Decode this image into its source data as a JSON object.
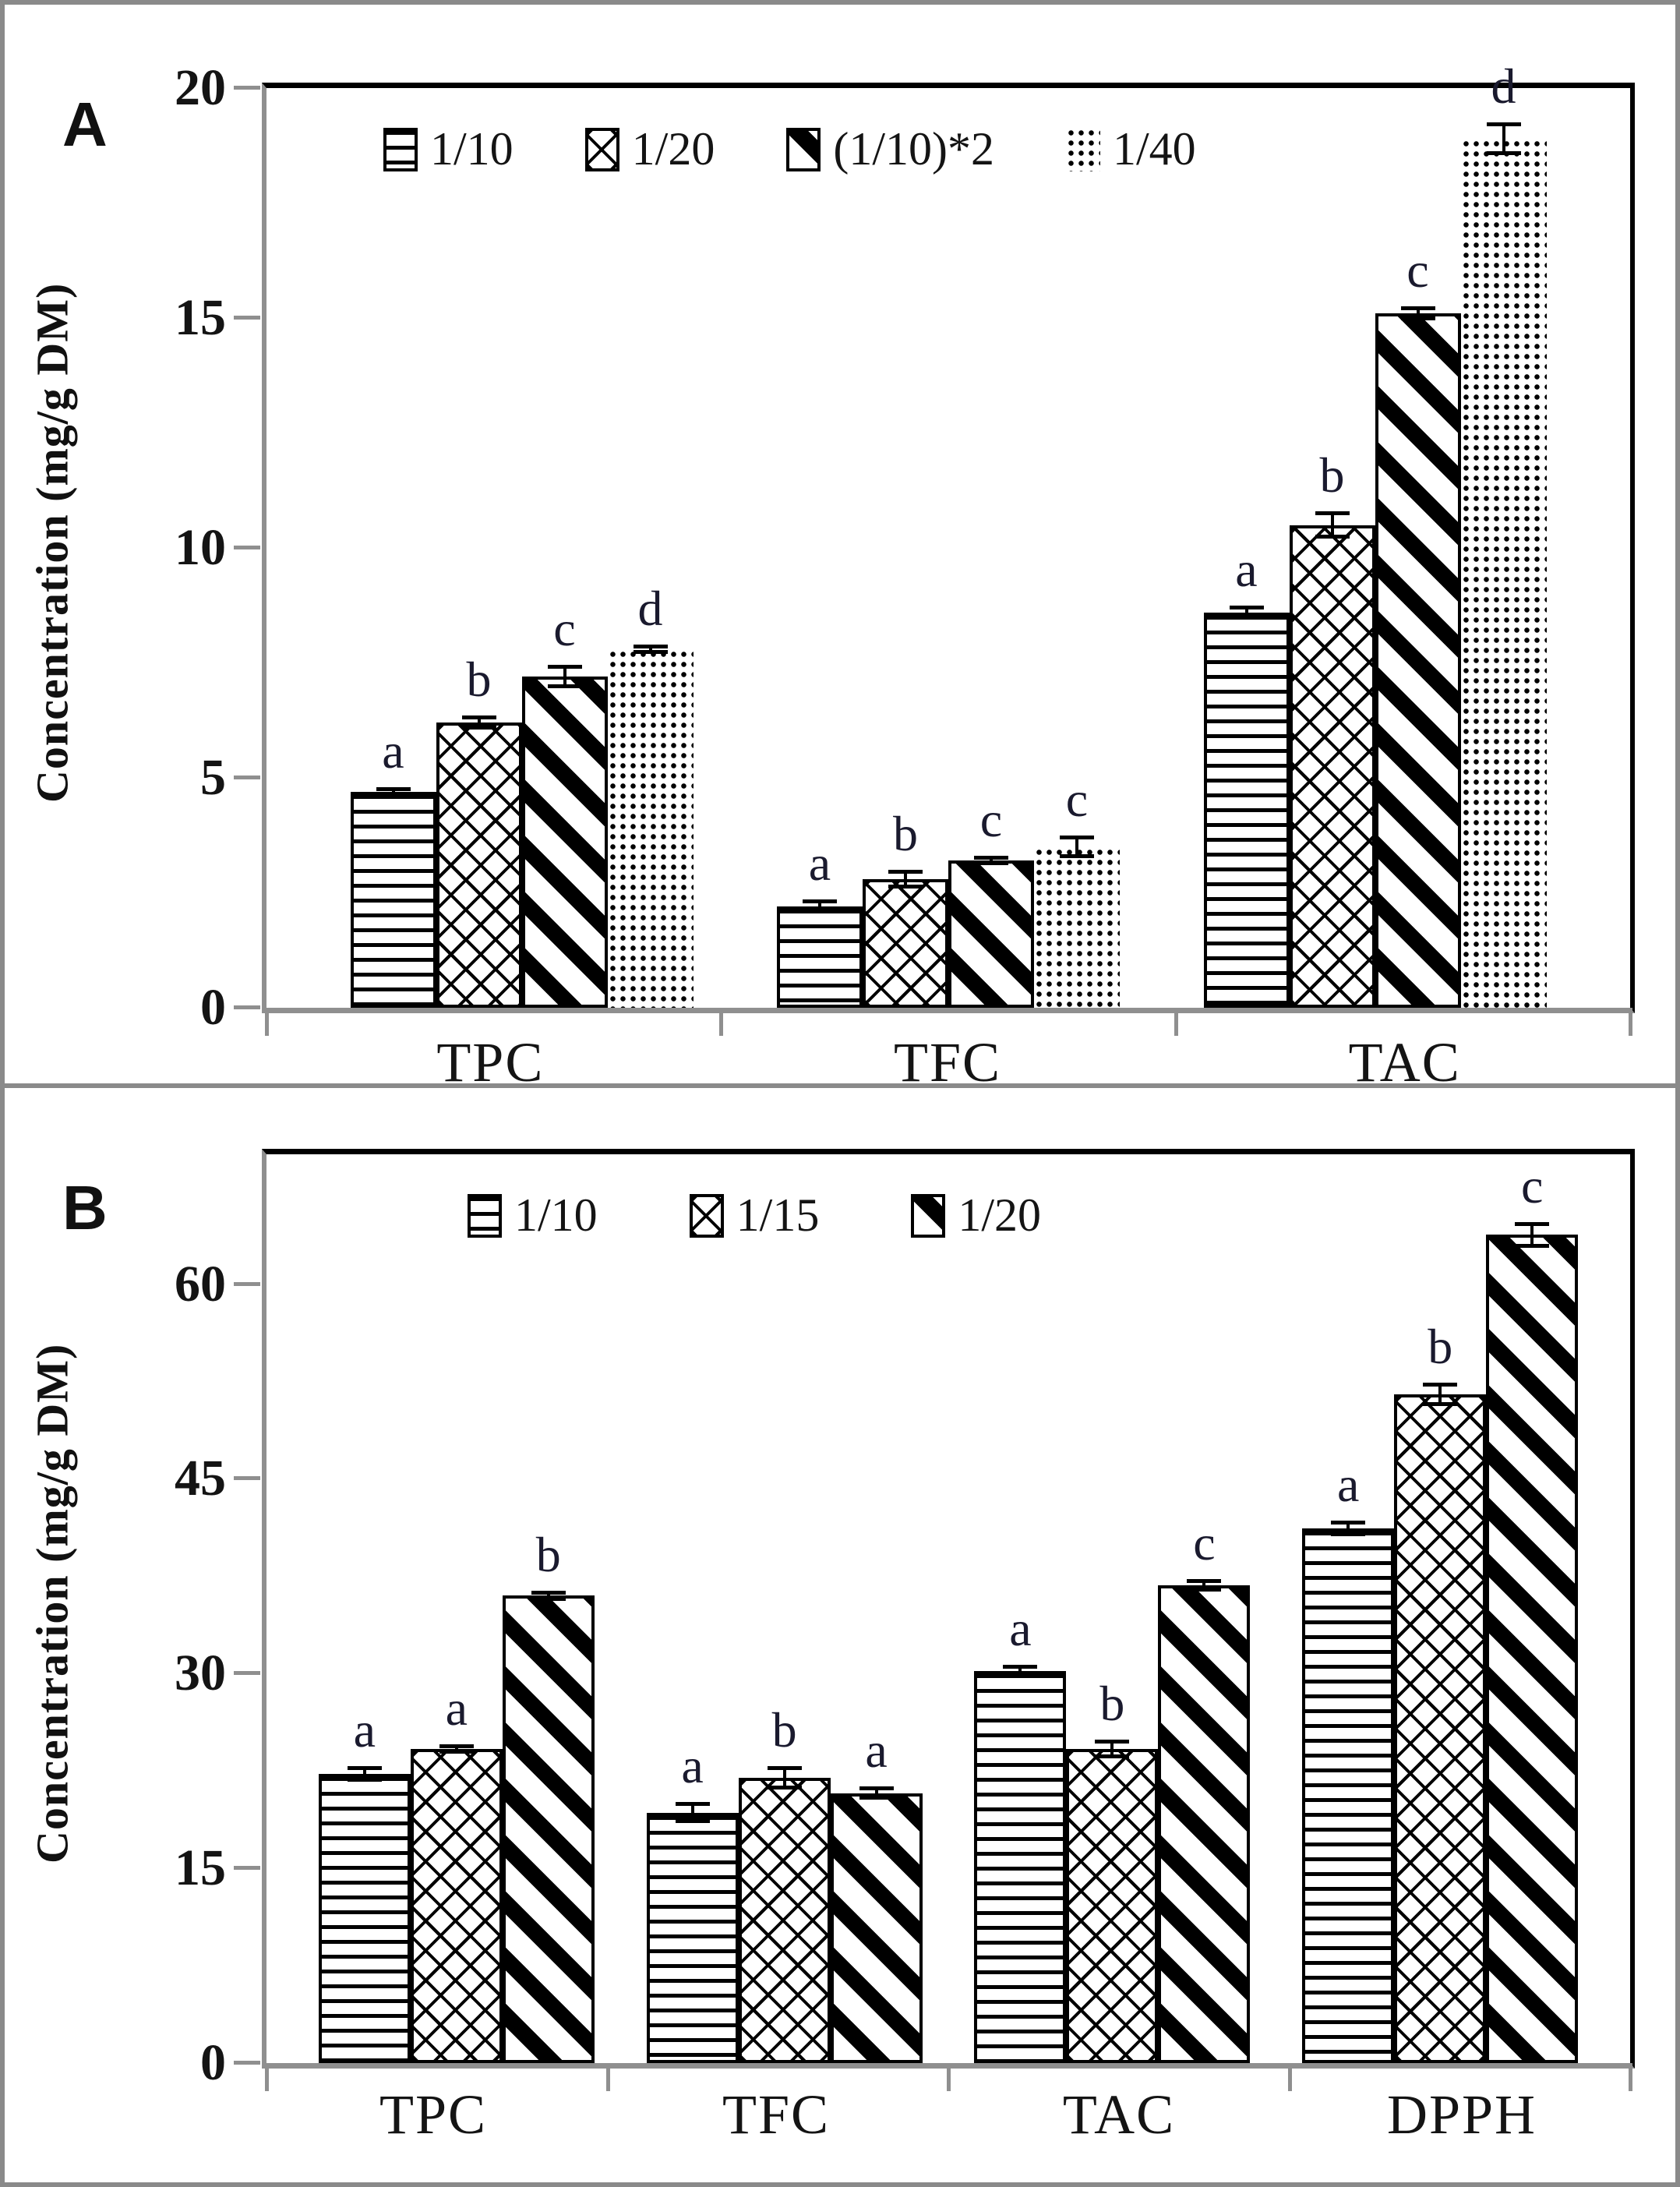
{
  "figure": {
    "border_color": "#8a8a8a",
    "axis_color": "#8f8f8f",
    "frame_color": "#000000",
    "text_color": "#141414",
    "sig_letter_color": "#1a1a2e",
    "bar_fill": "#ffffff",
    "bar_stroke": "#000000"
  },
  "chart_data": [
    {
      "panel_label": "A",
      "type": "bar",
      "title": "",
      "ylabel": "Concentration (mg/g DM)",
      "xlabel": "",
      "categories": [
        "TPC",
        "TFC",
        "TAC"
      ],
      "yticks": [
        0,
        5,
        10,
        15,
        20
      ],
      "ylim": [
        0,
        20
      ],
      "grid": false,
      "legend_position": "top-center",
      "series": [
        {
          "name": "1/10",
          "pattern": "horizontal-lines",
          "values": [
            4.7,
            2.2,
            8.6
          ],
          "errors": [
            0.1,
            0.15,
            0.15
          ],
          "letters": [
            "a",
            "a",
            "a"
          ]
        },
        {
          "name": "1/20",
          "pattern": "crosshatch",
          "values": [
            6.2,
            2.8,
            10.5
          ],
          "errors": [
            0.15,
            0.2,
            0.3
          ],
          "letters": [
            "b",
            "b",
            "b"
          ]
        },
        {
          "name": "(1/10)*2",
          "pattern": "diagonal-stripes",
          "values": [
            7.2,
            3.2,
            15.1
          ],
          "errors": [
            0.25,
            0.1,
            0.15
          ],
          "letters": [
            "c",
            "c",
            "c"
          ]
        },
        {
          "name": "1/40",
          "pattern": "dots",
          "values": [
            7.8,
            3.5,
            18.9
          ],
          "errors": [
            0.1,
            0.25,
            0.35
          ],
          "letters": [
            "d",
            "c",
            "d"
          ]
        }
      ]
    },
    {
      "panel_label": "B",
      "type": "bar",
      "title": "",
      "ylabel": "Concentration (mg/g DM)",
      "xlabel": "",
      "categories": [
        "TPC",
        "TFC",
        "TAC",
        "DPPH"
      ],
      "yticks": [
        0,
        15,
        30,
        45,
        60
      ],
      "ylim": [
        0,
        70
      ],
      "grid": false,
      "legend_position": "top-center",
      "series": [
        {
          "name": "1/10",
          "pattern": "horizontal-lines",
          "values": [
            22.3,
            19.3,
            30.2,
            41.2
          ],
          "errors": [
            0.6,
            0.8,
            0.5,
            0.6
          ],
          "letters": [
            "a",
            "a",
            "a",
            "a"
          ]
        },
        {
          "name": "1/15",
          "pattern": "crosshatch",
          "values": [
            24.2,
            22.0,
            24.2,
            51.5
          ],
          "errors": [
            0.3,
            0.9,
            0.7,
            0.9
          ],
          "letters": [
            "a",
            "b",
            "b",
            "b"
          ]
        },
        {
          "name": "1/20",
          "pattern": "diagonal-stripes",
          "values": [
            36.0,
            20.8,
            36.8,
            63.8
          ],
          "errors": [
            0.4,
            0.5,
            0.5,
            1.0
          ],
          "letters": [
            "b",
            "a",
            "c",
            "c"
          ]
        }
      ]
    }
  ]
}
